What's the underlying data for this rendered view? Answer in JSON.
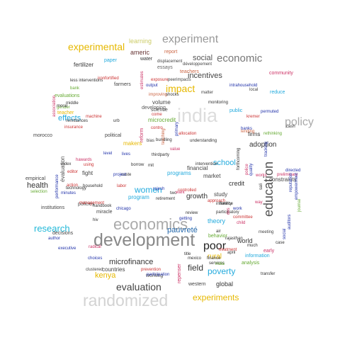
{
  "words": [
    {
      "text": "development",
      "color": "#888888"
    },
    {
      "text": "economics",
      "color": "#aaaaaa"
    },
    {
      "text": "randomized",
      "color": "#d3d3d3"
    },
    {
      "text": "experiment",
      "color": "#999999"
    },
    {
      "text": "economic",
      "color": "#777777"
    },
    {
      "text": "education",
      "color": "#555555"
    },
    {
      "text": "policy",
      "color": "#aaaaaa"
    },
    {
      "text": "india",
      "color": "#dddddd"
    },
    {
      "text": "poor",
      "color": "#222222"
    },
    {
      "text": "evaluation",
      "color": "#444444"
    },
    {
      "text": "experimental",
      "color": "#e6b800"
    },
    {
      "text": "experiments",
      "color": "#e6b800"
    },
    {
      "text": "research",
      "color": "#22b8d8"
    },
    {
      "text": "impact",
      "color": "#e6b800"
    },
    {
      "text": "women",
      "color": "#22aadd"
    },
    {
      "text": "poverty",
      "color": "#22aadd"
    },
    {
      "text": "kenya",
      "color": "#e6b800"
    },
    {
      "text": "microfinance",
      "color": "#333333"
    },
    {
      "text": "incentives",
      "color": "#444444"
    },
    {
      "text": "social",
      "color": "#555555"
    },
    {
      "text": "health",
      "color": "#333333"
    },
    {
      "text": "field",
      "color": "#333333"
    },
    {
      "text": "school",
      "color": "#22aadd"
    },
    {
      "text": "pauvreté",
      "color": "#2266aa"
    },
    {
      "text": "effects",
      "color": "#22aadd"
    },
    {
      "text": "rural",
      "color": "#e6b800"
    },
    {
      "text": "growth",
      "color": "#333333"
    },
    {
      "text": "adoption",
      "color": "#333333"
    },
    {
      "text": "global",
      "color": "#333333"
    },
    {
      "text": "credit",
      "color": "#333333"
    },
    {
      "text": "world",
      "color": "#333333"
    },
    {
      "text": "theory",
      "color": "#22aadd"
    },
    {
      "text": "learning",
      "color": "#cccc66"
    },
    {
      "text": "americ",
      "color": "#663333"
    },
    {
      "text": "report",
      "color": "#cc6644"
    },
    {
      "text": "fertilizer",
      "color": "#333333"
    },
    {
      "text": "teachers",
      "color": "#cc6644"
    },
    {
      "text": "essays",
      "color": "#666666"
    },
    {
      "text": "water",
      "color": "#333333"
    },
    {
      "text": "farmers",
      "color": "#444444"
    },
    {
      "text": "constraints",
      "color": "#444444"
    },
    {
      "text": "firms",
      "color": "#333333"
    },
    {
      "text": "programs",
      "color": "#22aadd"
    },
    {
      "text": "program",
      "color": "#22aadd"
    },
    {
      "text": "financial",
      "color": "#444444"
    },
    {
      "text": "market",
      "color": "#444444"
    },
    {
      "text": "study",
      "color": "#444444"
    },
    {
      "text": "countries",
      "color": "#444444"
    },
    {
      "text": "working",
      "color": "#444444"
    },
    {
      "text": "western",
      "color": "#444444"
    },
    {
      "text": "institutions",
      "color": "#444444"
    },
    {
      "text": "decisions",
      "color": "#444444"
    },
    {
      "text": "policies",
      "color": "#444444"
    },
    {
      "text": "miracle",
      "color": "#444444"
    },
    {
      "text": "empirical",
      "color": "#444444"
    },
    {
      "text": "fight",
      "color": "#444444"
    },
    {
      "text": "political",
      "color": "#444444"
    },
    {
      "text": "science",
      "color": "#444444"
    },
    {
      "text": "volume",
      "color": "#444444"
    },
    {
      "text": "developing",
      "color": "#555555"
    },
    {
      "text": "évaluation",
      "color": "#555555"
    },
    {
      "text": "morocco",
      "color": "#444444"
    },
    {
      "text": "bank",
      "color": "#66aa33"
    },
    {
      "text": "evaluations",
      "color": "#66aa33"
    },
    {
      "text": "analysis",
      "color": "#66aa33"
    },
    {
      "text": "behavior",
      "color": "#66aa33"
    },
    {
      "text": "information",
      "color": "#22aadd"
    },
    {
      "text": "public",
      "color": "#22aadd"
    },
    {
      "text": "microcredit",
      "color": "#66aa33"
    },
    {
      "text": "makers",
      "color": "#e6b800"
    },
    {
      "text": "paper",
      "color": "#22aadd"
    },
    {
      "text": "teacher",
      "color": "#e6b800"
    },
    {
      "text": "reduce",
      "color": "#22aadd"
    },
    {
      "text": "rethinking",
      "color": "#66aa33"
    },
    {
      "text": "fertility",
      "color": "#444444"
    },
    {
      "text": "local",
      "color": "#444444"
    },
    {
      "text": "matter",
      "color": "#444444"
    },
    {
      "text": "community",
      "color": "#cc3366"
    },
    {
      "text": "développement",
      "color": "#444444"
    },
    {
      "text": "displacement",
      "color": "#444444"
    },
    {
      "text": "improving",
      "color": "#cc6644"
    },
    {
      "text": "shocks",
      "color": "#333333"
    },
    {
      "text": "monitoring",
      "color": "#333333"
    },
    {
      "text": "understanding",
      "color": "#333333"
    },
    {
      "text": "intervention",
      "color": "#333333"
    },
    {
      "text": "review",
      "color": "#333333"
    },
    {
      "text": "participatory",
      "color": "#333333"
    },
    {
      "text": "committee",
      "color": "#cc3333"
    },
    {
      "text": "approach",
      "color": "#cc3333"
    },
    {
      "text": "influence",
      "color": "#333333"
    },
    {
      "text": "services",
      "color": "#333333"
    },
    {
      "text": "finance",
      "color": "#333333"
    },
    {
      "text": "treatment",
      "color": "#cc3333"
    },
    {
      "text": "rajasthan",
      "color": "#333333"
    },
    {
      "text": "meeting",
      "color": "#444444"
    },
    {
      "text": "transfer",
      "color": "#333333"
    },
    {
      "text": "chicago",
      "color": "#2233aa"
    },
    {
      "text": "management",
      "color": "#cc3333"
    },
    {
      "text": "prevention",
      "color": "#cc3333"
    },
    {
      "text": "participation",
      "color": "#2233aa"
    },
    {
      "text": "clustered",
      "color": "#444444"
    },
    {
      "text": "choices",
      "color": "#2233aa"
    },
    {
      "text": "author",
      "color": "#2233aa"
    },
    {
      "text": "executive",
      "color": "#2233aa"
    },
    {
      "text": "minutes",
      "color": "#2233aa"
    },
    {
      "text": "household",
      "color": "#333333"
    },
    {
      "text": "handbook",
      "color": "#333333"
    },
    {
      "text": "machine",
      "color": "#cc3333"
    },
    {
      "text": "remittances",
      "color": "#333333"
    },
    {
      "text": "insurance",
      "color": "#cc3333"
    },
    {
      "text": "gender",
      "color": "#66aa33"
    },
    {
      "text": "middle",
      "color": "#333333"
    },
    {
      "text": "less interventions",
      "color": "#333333"
    },
    {
      "text": "ironfortified",
      "color": "#cc3333"
    },
    {
      "text": "exposure",
      "color": "#cc3333"
    },
    {
      "text": "peerimpacts",
      "color": "#444444"
    },
    {
      "text": "output",
      "color": "#2233aa"
    },
    {
      "text": "intrahousehold",
      "color": "#2233aa"
    },
    {
      "text": "directed",
      "color": "#2233aa"
    },
    {
      "text": "preliminary",
      "color": "#cc3366"
    },
    {
      "text": "cash",
      "color": "#333333"
    },
    {
      "text": "banks",
      "color": "#2233aa"
    },
    {
      "text": "permuted",
      "color": "#2233aa"
    },
    {
      "text": "kremer",
      "color": "#cc3333"
    },
    {
      "text": "allocation",
      "color": "#cc3333"
    },
    {
      "text": "thirdparty",
      "color": "#333333"
    },
    {
      "text": "come",
      "color": "#cc3333"
    },
    {
      "text": "bundling",
      "color": "#333333"
    },
    {
      "text": "retirement",
      "color": "#333333"
    },
    {
      "text": "getting",
      "color": "#2233aa"
    },
    {
      "text": "controlled",
      "color": "#cc3333"
    },
    {
      "text": "caste",
      "color": "#333333"
    },
    {
      "text": "project",
      "color": "#2233aa"
    },
    {
      "text": "level",
      "color": "#2233aa"
    },
    {
      "text": "lives",
      "color": "#2233aa"
    },
    {
      "text": "borrow",
      "color": "#333333"
    },
    {
      "text": "mit",
      "color": "#333333"
    },
    {
      "text": "index",
      "color": "#333333"
    },
    {
      "text": "technology",
      "color": "#333333"
    },
    {
      "text": "action",
      "color": "#cc3333"
    },
    {
      "text": "using",
      "color": "#cc3333"
    },
    {
      "text": "editor",
      "color": "#cc3333"
    },
    {
      "text": "labor",
      "color": "#cc3333"
    },
    {
      "text": "rajesh",
      "color": "#2233aa"
    },
    {
      "text": "two",
      "color": "#333333"
    },
    {
      "text": "april",
      "color": "#333333"
    },
    {
      "text": "air",
      "color": "#333333"
    },
    {
      "text": "much",
      "color": "#333333"
    },
    {
      "text": "case",
      "color": "#333333"
    },
    {
      "text": "child",
      "color": "#cc3366"
    },
    {
      "text": "radical",
      "color": "#cc3366"
    },
    {
      "text": "hiv",
      "color": "#333333"
    },
    {
      "text": "early",
      "color": "#cc3366"
    },
    {
      "text": "title",
      "color": "#333333"
    },
    {
      "text": "india",
      "color": "#66aa33"
    },
    {
      "text": "works",
      "color": "#cc3366"
    },
    {
      "text": "want",
      "color": "#cc3366"
    },
    {
      "text": "work",
      "color": "#2233aa"
    },
    {
      "text": "way",
      "color": "#cc3366"
    },
    {
      "text": "urb",
      "color": "#333333"
    },
    {
      "text": "value",
      "color": "#cc3366"
    },
    {
      "text": "des",
      "color": "#cc3366"
    },
    {
      "text": "sali",
      "color": "#333333"
    },
    {
      "text": "quality",
      "color": "#2233aa"
    },
    {
      "text": "police",
      "color": "#cc3366"
    },
    {
      "text": "estimates",
      "color": "#cc3366"
    },
    {
      "text": "reform",
      "color": "#cc3366"
    },
    {
      "text": "teaching",
      "color": "#cc6644"
    },
    {
      "text": "primary",
      "color": "#2233aa"
    },
    {
      "text": "tracking",
      "color": "#2233aa"
    },
    {
      "text": "social",
      "color": "#2233aa"
    },
    {
      "text": "reputation",
      "color": "#2233aa"
    },
    {
      "text": "journal",
      "color": "#66aa33"
    },
    {
      "text": "empowerment",
      "color": "#2233aa"
    },
    {
      "text": "auditors",
      "color": "#2233aa"
    },
    {
      "text": "association",
      "color": "#cc3366"
    },
    {
      "text": "forthcoming",
      "color": "#333333"
    },
    {
      "text": "performance",
      "color": "#2233aa"
    },
    {
      "text": "selection",
      "color": "#66aa33"
    },
    {
      "text": "mexico",
      "color": "#333333"
    },
    {
      "text": "repenser",
      "color": "#cc3366"
    },
    {
      "text": "hawards",
      "color": "#cc3366"
    },
    {
      "text": "lending",
      "color": "#cc6644"
    },
    {
      "text": "moral",
      "color": "#333333"
    },
    {
      "text": "contro",
      "color": "#cc3333"
    },
    {
      "text": "bias",
      "color": "#444444"
    },
    {
      "text": "inequality",
      "color": "#333333"
    },
    {
      "text": "outcomes",
      "color": "#cc3366"
    }
  ]
}
